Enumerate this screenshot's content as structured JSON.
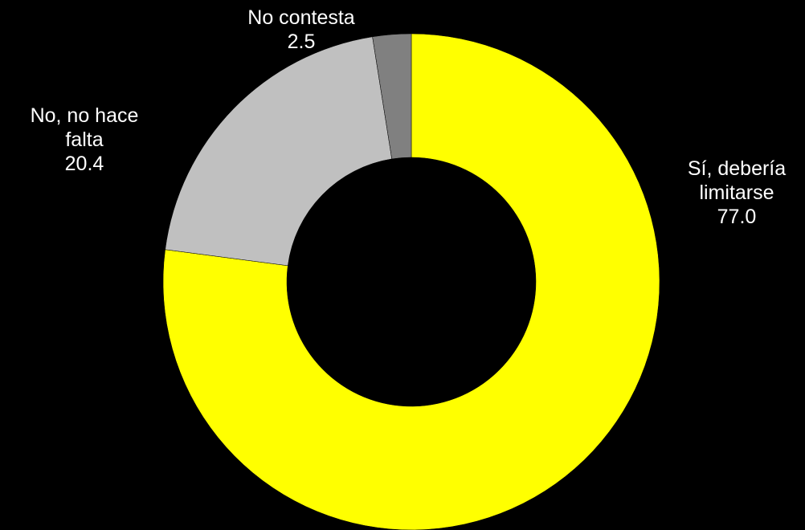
{
  "chart_data": {
    "type": "pie",
    "variant": "donut",
    "title": "",
    "slices": [
      {
        "name_lines": [
          "Sí, debería",
          "limitarse"
        ],
        "value_label": "77.0",
        "value": 77.0,
        "color": "#ffff00"
      },
      {
        "name_lines": [
          "No, no hace",
          "falta"
        ],
        "value_label": "20.4",
        "value": 20.4,
        "color": "#c0c0c0"
      },
      {
        "name_lines": [
          "No contesta"
        ],
        "value_label": "2.5",
        "value": 2.5,
        "color": "#808080"
      }
    ],
    "legend": "none",
    "background": "#000000",
    "label_color": "#ffffff"
  }
}
